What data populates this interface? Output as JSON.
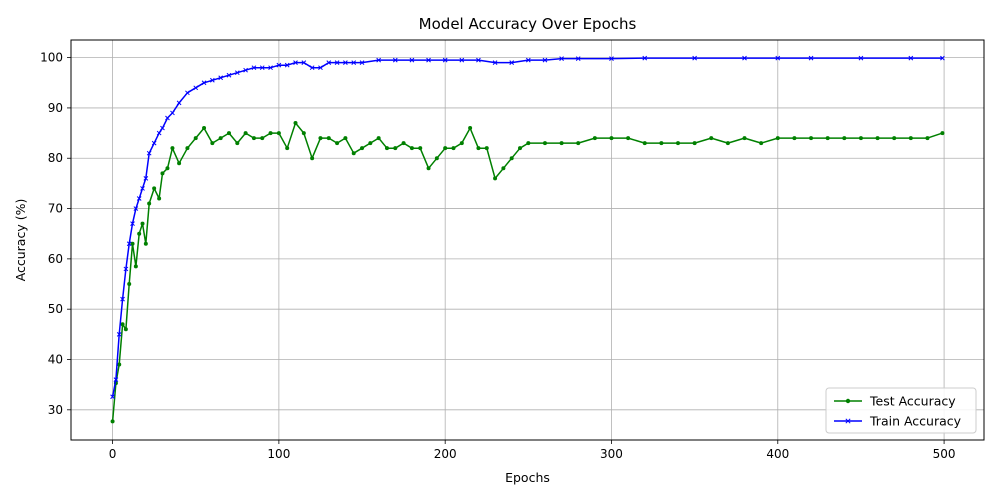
{
  "chart_data": {
    "type": "line",
    "title": "Model Accuracy Over Epochs",
    "xlabel": "Epochs",
    "ylabel": "Accuracy (%)",
    "xlim": [
      -25,
      524
    ],
    "ylim": [
      24,
      103.5
    ],
    "xticks": [
      0,
      100,
      200,
      300,
      400,
      500
    ],
    "yticks": [
      30,
      40,
      50,
      60,
      70,
      80,
      90,
      100
    ],
    "grid": true,
    "legend_position": "bottom-right",
    "series": [
      {
        "name": "Test Accuracy",
        "color": "#008000",
        "marker": "circle",
        "x": [
          0,
          2,
          4,
          6,
          8,
          10,
          12,
          14,
          16,
          18,
          20,
          22,
          25,
          28,
          30,
          33,
          36,
          40,
          45,
          50,
          55,
          60,
          65,
          70,
          75,
          80,
          85,
          90,
          95,
          100,
          105,
          110,
          115,
          120,
          125,
          130,
          135,
          140,
          145,
          150,
          155,
          160,
          165,
          170,
          175,
          180,
          185,
          190,
          195,
          200,
          205,
          210,
          215,
          220,
          225,
          230,
          235,
          240,
          245,
          250,
          260,
          270,
          280,
          290,
          300,
          310,
          320,
          330,
          340,
          350,
          360,
          370,
          380,
          390,
          400,
          410,
          420,
          430,
          440,
          450,
          460,
          470,
          480,
          490,
          499
        ],
        "values": [
          27.7,
          35.3,
          39,
          47,
          46,
          55,
          63,
          58.5,
          65,
          67,
          63,
          71,
          74,
          72,
          77,
          78,
          82,
          79,
          82,
          84,
          86,
          83,
          84,
          85,
          83,
          85,
          84,
          84,
          85,
          85,
          82,
          87,
          85,
          80,
          84,
          84,
          83,
          84,
          81,
          82,
          83,
          84,
          82,
          82,
          83,
          82,
          82,
          78,
          80,
          82,
          82,
          83,
          86,
          82,
          82,
          76,
          78,
          80,
          82,
          83,
          83,
          83,
          83,
          84,
          84,
          84,
          83,
          83,
          83,
          83,
          84,
          83,
          84,
          83,
          84,
          84,
          84,
          84,
          84,
          84,
          84,
          84,
          84,
          84,
          85
        ]
      },
      {
        "name": "Train Accuracy",
        "color": "#0000ff",
        "marker": "x",
        "x": [
          0,
          2,
          4,
          6,
          8,
          10,
          12,
          14,
          16,
          18,
          20,
          22,
          25,
          28,
          30,
          33,
          36,
          40,
          45,
          50,
          55,
          60,
          65,
          70,
          75,
          80,
          85,
          90,
          95,
          100,
          105,
          110,
          115,
          120,
          125,
          130,
          135,
          140,
          145,
          150,
          160,
          170,
          180,
          190,
          200,
          210,
          220,
          230,
          240,
          250,
          260,
          270,
          280,
          300,
          320,
          350,
          380,
          400,
          420,
          450,
          480,
          499
        ],
        "values": [
          32.6,
          36,
          45,
          52,
          58,
          63,
          67,
          70,
          72,
          74,
          76,
          81,
          83,
          85,
          86,
          88,
          89,
          91,
          93,
          94,
          95,
          95.5,
          96,
          96.5,
          97,
          97.5,
          98,
          98,
          98,
          98.5,
          98.5,
          99,
          99,
          98,
          98,
          99,
          99,
          99,
          99,
          99,
          99.5,
          99.5,
          99.5,
          99.5,
          99.5,
          99.5,
          99.5,
          99,
          99,
          99.5,
          99.5,
          99.8,
          99.8,
          99.8,
          99.9,
          99.9,
          99.9,
          99.9,
          99.9,
          99.9,
          99.9,
          99.9
        ]
      }
    ]
  }
}
